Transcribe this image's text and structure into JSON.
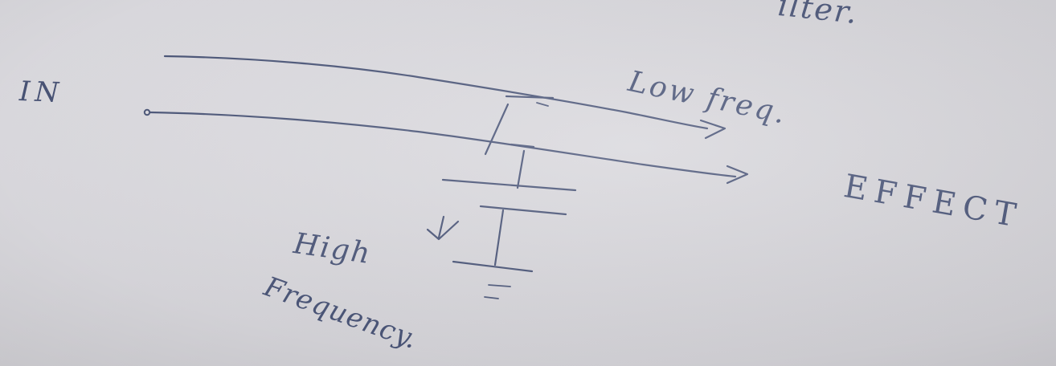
{
  "notes": {
    "top_fragment": "ilter.",
    "input_label": "IN",
    "low_freq_label": "Low freq.",
    "effect_label": "EFFECT",
    "high_label": "High",
    "frequency_label": "Frequency."
  },
  "colors": {
    "ink": "#4a5578",
    "paper": "#dcdbe0"
  }
}
